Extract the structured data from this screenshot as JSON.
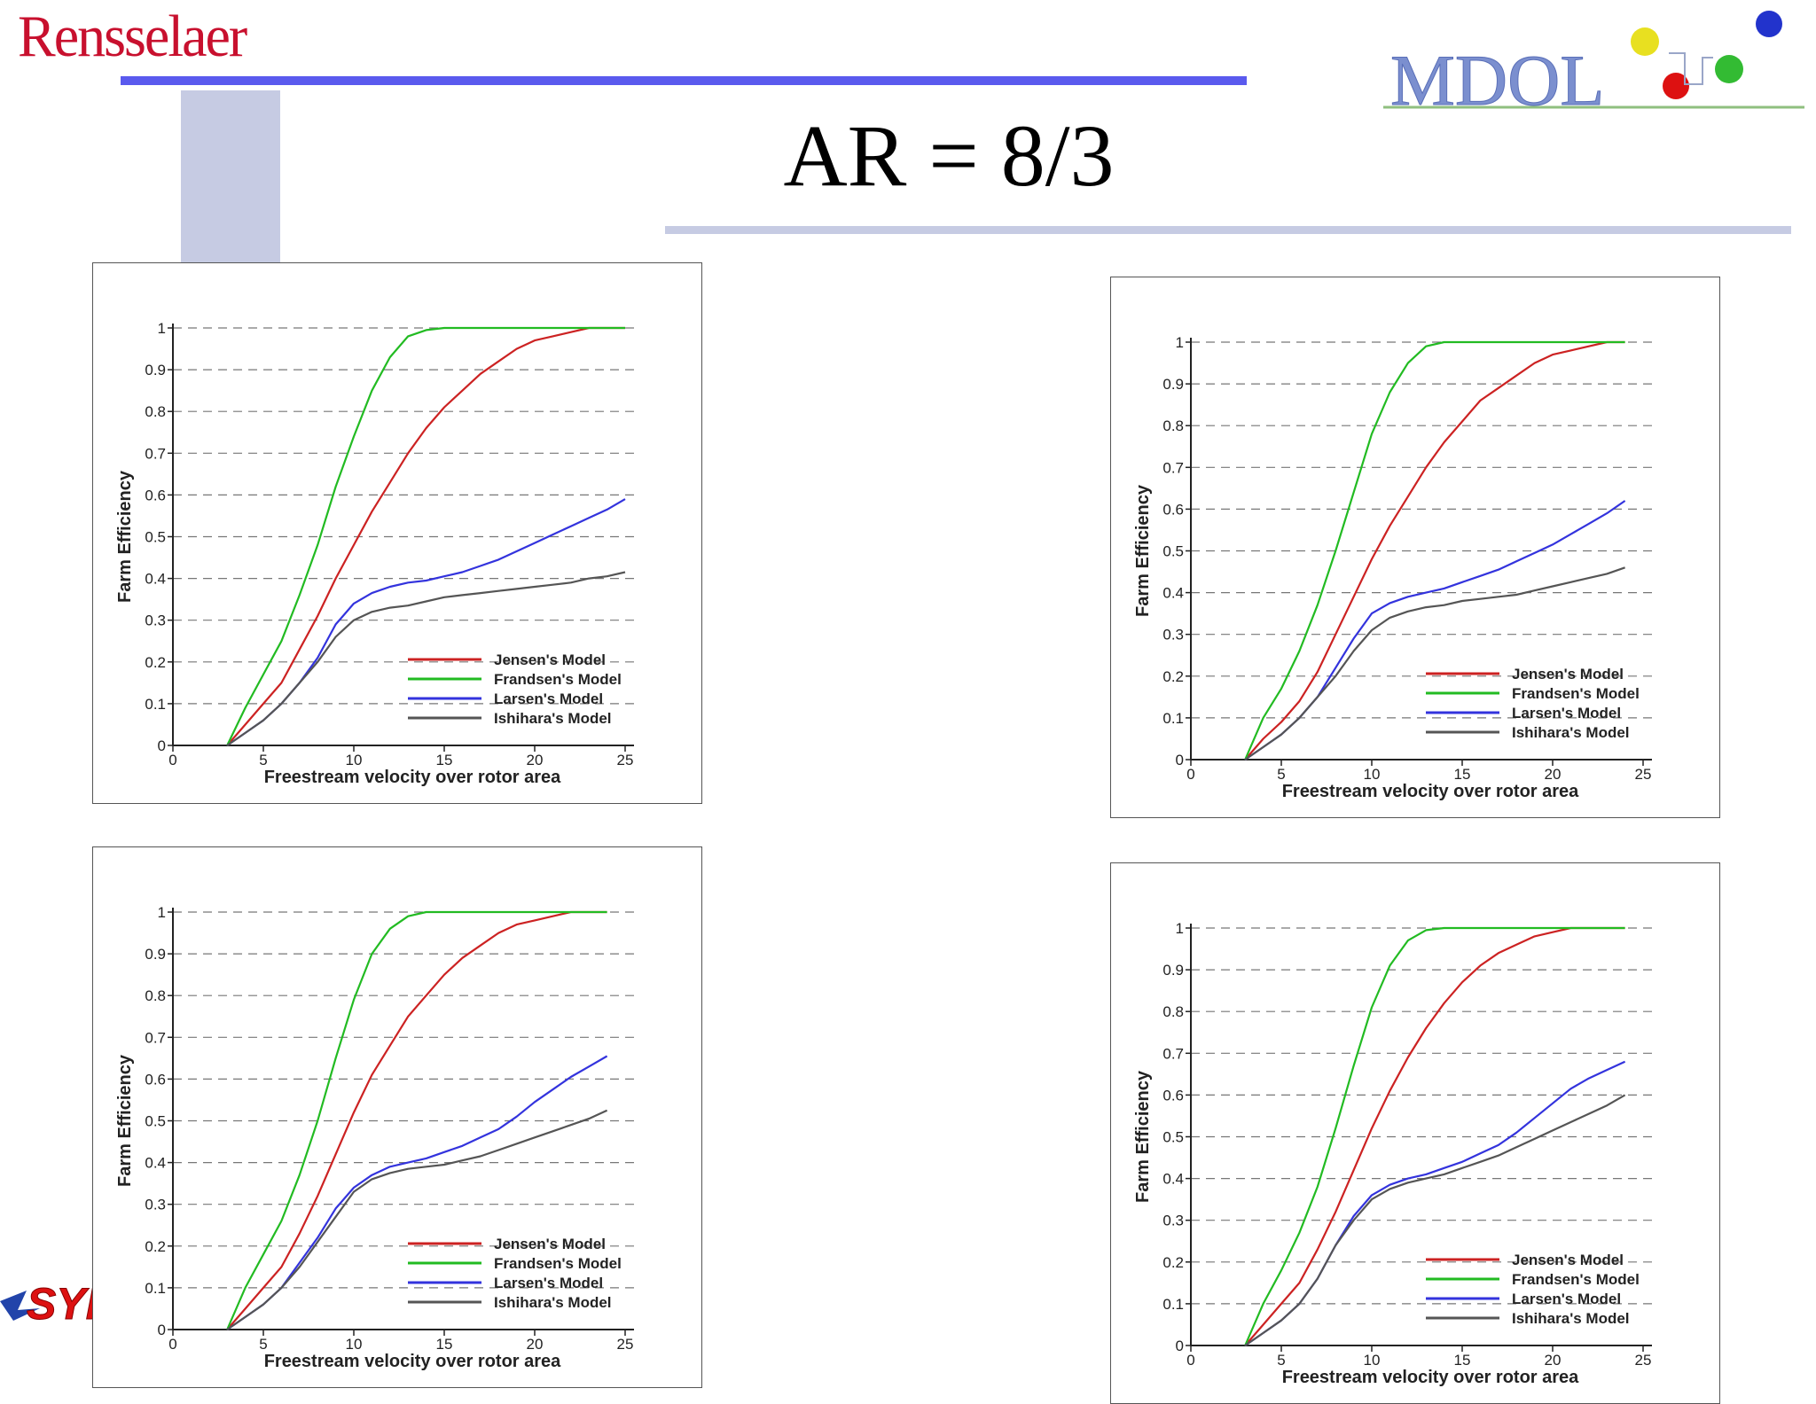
{
  "header": {
    "brand": "Rensselaer",
    "logo_text": "MDOL",
    "title": "AR = 8/3",
    "colors": {
      "brand": "#c8102e",
      "rule": "#5a5aee",
      "accent_block": "#c6cbe3",
      "logo_text": "#7b8fcf"
    }
  },
  "footer": {
    "logo_text": "SYI"
  },
  "chart_data": [
    {
      "type": "line",
      "title": "",
      "xlabel": "Freestream velocity over rotor area",
      "ylabel": "Farm Efficiency",
      "xlim": [
        0,
        25
      ],
      "ylim": [
        0,
        1
      ],
      "xticks": [
        0,
        5,
        10,
        15,
        20,
        25
      ],
      "yticks": [
        0,
        0.1,
        0.2,
        0.3,
        0.4,
        0.5,
        0.6,
        0.7,
        0.8,
        0.9,
        1
      ],
      "grid": "horizontal dashed",
      "legend_position": "bottom-right",
      "series": [
        {
          "name": "Jensen's Model",
          "color": "#cc2222",
          "x": [
            3,
            4,
            5,
            6,
            7,
            8,
            9,
            10,
            11,
            12,
            13,
            14,
            15,
            16,
            17,
            18,
            19,
            20,
            21,
            22,
            23,
            24,
            25
          ],
          "y": [
            0,
            0.05,
            0.1,
            0.15,
            0.23,
            0.31,
            0.4,
            0.48,
            0.56,
            0.63,
            0.7,
            0.76,
            0.81,
            0.85,
            0.89,
            0.92,
            0.95,
            0.97,
            0.98,
            0.99,
            1.0,
            1.0,
            1.0
          ]
        },
        {
          "name": "Frandsen's Model",
          "color": "#22bb22",
          "x": [
            3,
            4,
            5,
            6,
            7,
            8,
            9,
            10,
            11,
            12,
            13,
            14,
            15,
            16,
            17,
            18,
            19,
            20,
            21,
            22,
            23,
            24,
            25
          ],
          "y": [
            0,
            0.09,
            0.17,
            0.25,
            0.36,
            0.48,
            0.62,
            0.74,
            0.85,
            0.93,
            0.98,
            0.995,
            1.0,
            1.0,
            1.0,
            1.0,
            1.0,
            1.0,
            1.0,
            1.0,
            1.0,
            1.0,
            1.0
          ]
        },
        {
          "name": "Larsen's Model",
          "color": "#3333dd",
          "x": [
            3,
            4,
            5,
            6,
            7,
            8,
            9,
            10,
            11,
            12,
            13,
            14,
            15,
            16,
            17,
            18,
            19,
            20,
            21,
            22,
            23,
            24,
            25
          ],
          "y": [
            0,
            0.03,
            0.06,
            0.1,
            0.15,
            0.21,
            0.29,
            0.34,
            0.365,
            0.38,
            0.39,
            0.395,
            0.405,
            0.415,
            0.43,
            0.445,
            0.465,
            0.485,
            0.505,
            0.525,
            0.545,
            0.565,
            0.59
          ]
        },
        {
          "name": "Ishihara's Model",
          "color": "#555555",
          "x": [
            3,
            4,
            5,
            6,
            7,
            8,
            9,
            10,
            11,
            12,
            13,
            14,
            15,
            16,
            17,
            18,
            19,
            20,
            21,
            22,
            23,
            24,
            25
          ],
          "y": [
            0,
            0.03,
            0.06,
            0.1,
            0.15,
            0.2,
            0.26,
            0.3,
            0.32,
            0.33,
            0.335,
            0.345,
            0.355,
            0.36,
            0.365,
            0.37,
            0.375,
            0.38,
            0.385,
            0.39,
            0.4,
            0.405,
            0.415
          ]
        }
      ]
    },
    {
      "type": "line",
      "title": "",
      "xlabel": "Freestream velocity over rotor area",
      "ylabel": "Farm Efficiency",
      "xlim": [
        0,
        25
      ],
      "ylim": [
        0,
        1
      ],
      "xticks": [
        0,
        5,
        10,
        15,
        20,
        25
      ],
      "yticks": [
        0,
        0.1,
        0.2,
        0.3,
        0.4,
        0.5,
        0.6,
        0.7,
        0.8,
        0.9,
        1
      ],
      "grid": "horizontal dashed",
      "legend_position": "bottom-right",
      "series": [
        {
          "name": "Jensen's Model",
          "color": "#cc2222",
          "x": [
            3,
            4,
            5,
            6,
            7,
            8,
            9,
            10,
            11,
            12,
            13,
            14,
            15,
            16,
            17,
            18,
            19,
            20,
            21,
            22,
            23,
            24
          ],
          "y": [
            0,
            0.05,
            0.09,
            0.14,
            0.21,
            0.3,
            0.39,
            0.48,
            0.56,
            0.63,
            0.7,
            0.76,
            0.81,
            0.86,
            0.89,
            0.92,
            0.95,
            0.97,
            0.98,
            0.99,
            1.0,
            1.0
          ]
        },
        {
          "name": "Frandsen's Model",
          "color": "#22bb22",
          "x": [
            3,
            4,
            5,
            6,
            7,
            8,
            9,
            10,
            11,
            12,
            13,
            14,
            15,
            16,
            17,
            18,
            19,
            20,
            21,
            22,
            23,
            24
          ],
          "y": [
            0,
            0.1,
            0.17,
            0.26,
            0.37,
            0.5,
            0.64,
            0.78,
            0.88,
            0.95,
            0.99,
            1.0,
            1.0,
            1.0,
            1.0,
            1.0,
            1.0,
            1.0,
            1.0,
            1.0,
            1.0,
            1.0
          ]
        },
        {
          "name": "Larsen's Model",
          "color": "#3333dd",
          "x": [
            3,
            4,
            5,
            6,
            7,
            8,
            9,
            10,
            11,
            12,
            13,
            14,
            15,
            16,
            17,
            18,
            19,
            20,
            21,
            22,
            23,
            24
          ],
          "y": [
            0,
            0.03,
            0.06,
            0.1,
            0.15,
            0.22,
            0.29,
            0.35,
            0.375,
            0.39,
            0.4,
            0.41,
            0.425,
            0.44,
            0.455,
            0.475,
            0.495,
            0.515,
            0.54,
            0.565,
            0.59,
            0.62
          ]
        },
        {
          "name": "Ishihara's Model",
          "color": "#555555",
          "x": [
            3,
            4,
            5,
            6,
            7,
            8,
            9,
            10,
            11,
            12,
            13,
            14,
            15,
            16,
            17,
            18,
            19,
            20,
            21,
            22,
            23,
            24
          ],
          "y": [
            0,
            0.03,
            0.06,
            0.1,
            0.15,
            0.2,
            0.26,
            0.31,
            0.34,
            0.355,
            0.365,
            0.37,
            0.38,
            0.385,
            0.39,
            0.395,
            0.405,
            0.415,
            0.425,
            0.435,
            0.445,
            0.46
          ]
        }
      ]
    },
    {
      "type": "line",
      "title": "",
      "xlabel": "Freestream velocity over rotor area",
      "ylabel": "Farm Efficiency",
      "xlim": [
        0,
        25
      ],
      "ylim": [
        0,
        1
      ],
      "xticks": [
        0,
        5,
        10,
        15,
        20,
        25
      ],
      "yticks": [
        0,
        0.1,
        0.2,
        0.3,
        0.4,
        0.5,
        0.6,
        0.7,
        0.8,
        0.9,
        1
      ],
      "grid": "horizontal dashed",
      "legend_position": "bottom-right",
      "series": [
        {
          "name": "Jensen's Model",
          "color": "#cc2222",
          "x": [
            3,
            4,
            5,
            6,
            7,
            8,
            9,
            10,
            11,
            12,
            13,
            14,
            15,
            16,
            17,
            18,
            19,
            20,
            21,
            22,
            23,
            24
          ],
          "y": [
            0,
            0.05,
            0.1,
            0.15,
            0.23,
            0.32,
            0.42,
            0.52,
            0.61,
            0.68,
            0.75,
            0.8,
            0.85,
            0.89,
            0.92,
            0.95,
            0.97,
            0.98,
            0.99,
            1.0,
            1.0,
            1.0
          ]
        },
        {
          "name": "Frandsen's Model",
          "color": "#22bb22",
          "x": [
            3,
            4,
            5,
            6,
            7,
            8,
            9,
            10,
            11,
            12,
            13,
            14,
            15,
            16,
            17,
            18,
            19,
            20,
            21,
            22,
            23,
            24
          ],
          "y": [
            0,
            0.1,
            0.18,
            0.26,
            0.37,
            0.5,
            0.65,
            0.79,
            0.9,
            0.96,
            0.99,
            1.0,
            1.0,
            1.0,
            1.0,
            1.0,
            1.0,
            1.0,
            1.0,
            1.0,
            1.0,
            1.0
          ]
        },
        {
          "name": "Larsen's Model",
          "color": "#3333dd",
          "x": [
            3,
            4,
            5,
            6,
            7,
            8,
            9,
            10,
            11,
            12,
            13,
            14,
            15,
            16,
            17,
            18,
            19,
            20,
            21,
            22,
            23,
            24
          ],
          "y": [
            0,
            0.03,
            0.06,
            0.1,
            0.16,
            0.22,
            0.29,
            0.34,
            0.37,
            0.39,
            0.4,
            0.41,
            0.425,
            0.44,
            0.46,
            0.48,
            0.51,
            0.545,
            0.575,
            0.605,
            0.63,
            0.655
          ]
        },
        {
          "name": "Ishihara's Model",
          "color": "#555555",
          "x": [
            3,
            4,
            5,
            6,
            7,
            8,
            9,
            10,
            11,
            12,
            13,
            14,
            15,
            16,
            17,
            18,
            19,
            20,
            21,
            22,
            23,
            24
          ],
          "y": [
            0,
            0.03,
            0.06,
            0.1,
            0.15,
            0.21,
            0.27,
            0.33,
            0.36,
            0.375,
            0.385,
            0.39,
            0.395,
            0.405,
            0.415,
            0.43,
            0.445,
            0.46,
            0.475,
            0.49,
            0.505,
            0.525
          ]
        }
      ]
    },
    {
      "type": "line",
      "title": "",
      "xlabel": "Freestream velocity over rotor area",
      "ylabel": "Farm Efficiency",
      "xlim": [
        0,
        25
      ],
      "ylim": [
        0,
        1
      ],
      "xticks": [
        0,
        5,
        10,
        15,
        20,
        25
      ],
      "yticks": [
        0,
        0.1,
        0.2,
        0.3,
        0.4,
        0.5,
        0.6,
        0.7,
        0.8,
        0.9,
        1
      ],
      "grid": "horizontal dashed",
      "legend_position": "bottom-right",
      "series": [
        {
          "name": "Jensen's Model",
          "color": "#cc2222",
          "x": [
            3,
            4,
            5,
            6,
            7,
            8,
            9,
            10,
            11,
            12,
            13,
            14,
            15,
            16,
            17,
            18,
            19,
            20,
            21,
            22,
            23,
            24
          ],
          "y": [
            0,
            0.05,
            0.1,
            0.15,
            0.23,
            0.32,
            0.42,
            0.52,
            0.61,
            0.69,
            0.76,
            0.82,
            0.87,
            0.91,
            0.94,
            0.96,
            0.98,
            0.99,
            1.0,
            1.0,
            1.0,
            1.0
          ]
        },
        {
          "name": "Frandsen's Model",
          "color": "#22bb22",
          "x": [
            3,
            4,
            5,
            6,
            7,
            8,
            9,
            10,
            11,
            12,
            13,
            14,
            15,
            16,
            17,
            18,
            19,
            20,
            21,
            22,
            23,
            24
          ],
          "y": [
            0,
            0.1,
            0.18,
            0.27,
            0.38,
            0.52,
            0.67,
            0.81,
            0.91,
            0.97,
            0.995,
            1.0,
            1.0,
            1.0,
            1.0,
            1.0,
            1.0,
            1.0,
            1.0,
            1.0,
            1.0,
            1.0
          ]
        },
        {
          "name": "Larsen's Model",
          "color": "#3333dd",
          "x": [
            3,
            4,
            5,
            6,
            7,
            8,
            9,
            10,
            11,
            12,
            13,
            14,
            15,
            16,
            17,
            18,
            19,
            20,
            21,
            22,
            23,
            24
          ],
          "y": [
            0,
            0.03,
            0.06,
            0.1,
            0.16,
            0.24,
            0.31,
            0.36,
            0.385,
            0.4,
            0.41,
            0.425,
            0.44,
            0.46,
            0.48,
            0.51,
            0.545,
            0.58,
            0.615,
            0.64,
            0.66,
            0.68
          ]
        },
        {
          "name": "Ishihara's Model",
          "color": "#555555",
          "x": [
            3,
            4,
            5,
            6,
            7,
            8,
            9,
            10,
            11,
            12,
            13,
            14,
            15,
            16,
            17,
            18,
            19,
            20,
            21,
            22,
            23,
            24
          ],
          "y": [
            0,
            0.03,
            0.06,
            0.1,
            0.16,
            0.24,
            0.3,
            0.35,
            0.375,
            0.39,
            0.4,
            0.41,
            0.425,
            0.44,
            0.455,
            0.475,
            0.495,
            0.515,
            0.535,
            0.555,
            0.575,
            0.6
          ]
        }
      ]
    }
  ]
}
